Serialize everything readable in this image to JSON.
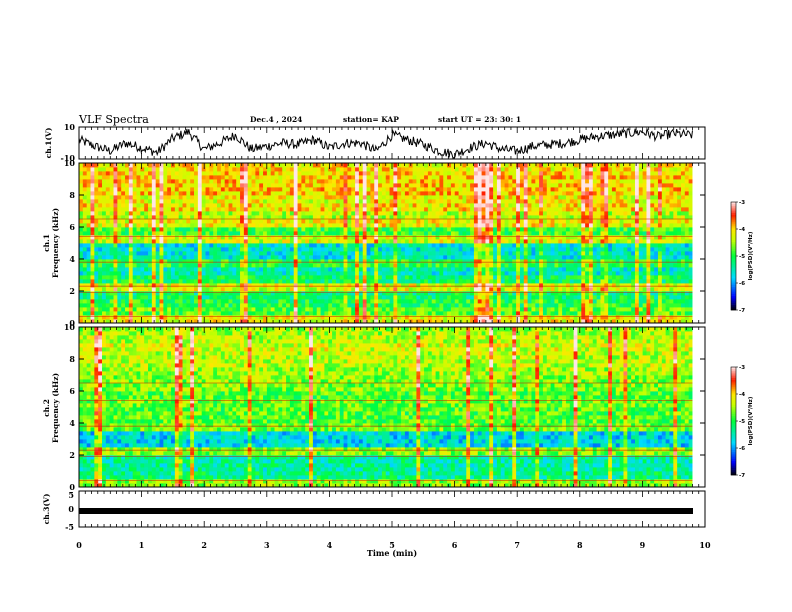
{
  "header": {
    "title": "VLF Spectra",
    "date": "Dec.4 , 2024",
    "station": "station= KAP",
    "start": "start  UT  =   23: 30: 1"
  },
  "chart_data": [
    {
      "type": "line",
      "panel": "ch1-waveform",
      "ylabel": "ch.1(V)",
      "ylim": [
        -10,
        10
      ],
      "yticks": [
        "10",
        "-10"
      ],
      "x": [
        0,
        0.25,
        0.5,
        0.75,
        1,
        1.25,
        1.5,
        1.75,
        2,
        2.25,
        2.5,
        2.75,
        3,
        3.25,
        3.5,
        3.75,
        4,
        4.25,
        4.5,
        4.75,
        5,
        5.25,
        5.5,
        5.75,
        6,
        6.25,
        6.5,
        6.75,
        7,
        7.25,
        7.5,
        7.75,
        8,
        8.25,
        8.5,
        8.75,
        9,
        9.25,
        9.5,
        9.75
      ],
      "values": [
        2,
        -2,
        -5,
        0,
        -3,
        -6,
        3,
        7,
        -4,
        0,
        5,
        -4,
        -2,
        0,
        -1,
        2,
        -3,
        0,
        0,
        -5,
        5,
        2,
        -1,
        -5,
        -7,
        -3,
        0,
        -4,
        -5,
        -2,
        -1,
        0,
        2,
        4,
        5,
        6,
        7,
        4,
        6,
        5
      ]
    },
    {
      "type": "heatmap",
      "panel": "ch1-spectrogram",
      "ylabel": "ch.1\nFrequency (kHz)",
      "ylim": [
        0,
        10
      ],
      "yticks": [
        "0",
        "2",
        "4",
        "6",
        "8",
        "10"
      ],
      "colorbar": {
        "label": "log(PSD)(V²/Hz)",
        "range": [
          -7,
          -3
        ],
        "ticks": [
          "-3",
          "-4",
          "-5",
          "-6",
          "-7"
        ],
        "colors": [
          "#000000",
          "#0000ff",
          "#00ffff",
          "#00ff00",
          "#ffff00",
          "#ff0000",
          "#ffffff"
        ]
      },
      "freq_kHz": [
        0.25,
        0.75,
        1.25,
        1.75,
        2.25,
        2.75,
        3.25,
        3.75,
        4.25,
        4.75,
        5.25,
        5.75,
        6.25,
        6.75,
        7.25,
        7.75,
        8.25,
        8.75,
        9.25,
        9.75
      ],
      "mean_log_psd": [
        -4.2,
        -4.8,
        -5.0,
        -5.2,
        -4.3,
        -5.2,
        -5.5,
        -5.0,
        -5.6,
        -5.6,
        -4.3,
        -4.9,
        -4.2,
        -4.4,
        -4.1,
        -4.2,
        -4.0,
        -4.0,
        -4.0,
        -4.1
      ]
    },
    {
      "type": "heatmap",
      "panel": "ch2-spectrogram",
      "ylabel": "ch.2\nFrequency (kHz)",
      "ylim": [
        0,
        10
      ],
      "yticks": [
        "0",
        "2",
        "4",
        "6",
        "8",
        "10"
      ],
      "colorbar": {
        "label": "log(PSD)(V²/Hz)",
        "range": [
          -7,
          -3
        ],
        "ticks": [
          "-3",
          "-4",
          "-5",
          "-6",
          "-7"
        ],
        "colors": [
          "#000000",
          "#0000ff",
          "#00ffff",
          "#00ff00",
          "#ffff00",
          "#ff0000",
          "#ffffff"
        ]
      },
      "freq_kHz": [
        0.25,
        0.75,
        1.25,
        1.75,
        2.25,
        2.75,
        3.25,
        3.75,
        4.25,
        4.75,
        5.25,
        5.75,
        6.25,
        6.75,
        7.25,
        7.75,
        8.25,
        8.75,
        9.25,
        9.75
      ],
      "mean_log_psd": [
        -4.6,
        -5.3,
        -5.4,
        -5.4,
        -4.6,
        -5.7,
        -5.7,
        -4.7,
        -4.8,
        -4.8,
        -4.7,
        -4.8,
        -4.6,
        -4.6,
        -4.5,
        -4.4,
        -4.4,
        -4.3,
        -4.4,
        -4.5
      ]
    },
    {
      "type": "line",
      "panel": "ch3-waveform",
      "ylabel": "ch.3(V)",
      "ylim": [
        -5,
        5
      ],
      "yticks": [
        "5",
        "0",
        "-5"
      ],
      "x": [
        0,
        9.8
      ],
      "values": [
        0,
        0
      ]
    }
  ],
  "xaxis": {
    "label": "Time  (min)",
    "range": [
      0,
      10
    ],
    "ticks": [
      "0",
      "1",
      "2",
      "3",
      "4",
      "5",
      "6",
      "7",
      "8",
      "9",
      "10"
    ]
  }
}
